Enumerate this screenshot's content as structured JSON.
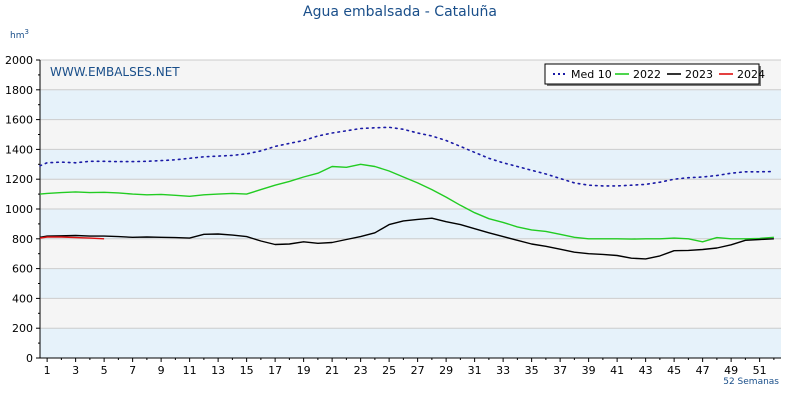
{
  "chart_data": {
    "type": "line",
    "title": "Agua embalsada - Cataluña",
    "y_unit": "hm",
    "y_unit_sup": "3",
    "watermark": "WWW.EMBALSES.NET",
    "x_footer": "52 Semanas",
    "ylim": [
      0,
      2000
    ],
    "yticks": [
      0,
      200,
      400,
      600,
      800,
      1000,
      1200,
      1400,
      1600,
      1800,
      2000
    ],
    "xlim": [
      0.5,
      52.5
    ],
    "xticks": [
      1,
      3,
      5,
      7,
      9,
      11,
      13,
      15,
      17,
      19,
      21,
      23,
      25,
      27,
      29,
      31,
      33,
      35,
      37,
      39,
      41,
      43,
      45,
      47,
      49,
      51
    ],
    "grid": true,
    "legend_position": "top-right",
    "series": [
      {
        "name": "Med 10",
        "color": "#1a1aa6",
        "style": "dotted",
        "points": [
          [
            0.5,
            1290
          ],
          [
            1,
            1310
          ],
          [
            2,
            1315
          ],
          [
            3,
            1310
          ],
          [
            4,
            1320
          ],
          [
            5,
            1320
          ],
          [
            6,
            1318
          ],
          [
            7,
            1318
          ],
          [
            8,
            1320
          ],
          [
            9,
            1325
          ],
          [
            10,
            1330
          ],
          [
            11,
            1340
          ],
          [
            12,
            1350
          ],
          [
            13,
            1355
          ],
          [
            14,
            1360
          ],
          [
            15,
            1370
          ],
          [
            16,
            1390
          ],
          [
            17,
            1420
          ],
          [
            18,
            1440
          ],
          [
            19,
            1460
          ],
          [
            20,
            1490
          ],
          [
            21,
            1510
          ],
          [
            22,
            1525
          ],
          [
            23,
            1540
          ],
          [
            24,
            1545
          ],
          [
            25,
            1548
          ],
          [
            26,
            1535
          ],
          [
            27,
            1510
          ],
          [
            28,
            1490
          ],
          [
            29,
            1460
          ],
          [
            30,
            1420
          ],
          [
            31,
            1380
          ],
          [
            32,
            1340
          ],
          [
            33,
            1310
          ],
          [
            34,
            1285
          ],
          [
            35,
            1260
          ],
          [
            36,
            1235
          ],
          [
            37,
            1205
          ],
          [
            38,
            1175
          ],
          [
            39,
            1160
          ],
          [
            40,
            1155
          ],
          [
            41,
            1155
          ],
          [
            42,
            1160
          ],
          [
            43,
            1165
          ],
          [
            44,
            1180
          ],
          [
            45,
            1200
          ],
          [
            46,
            1210
          ],
          [
            47,
            1215
          ],
          [
            48,
            1225
          ],
          [
            49,
            1240
          ],
          [
            50,
            1250
          ],
          [
            51,
            1250
          ],
          [
            52,
            1252
          ]
        ]
      },
      {
        "name": "2022",
        "color": "#22cc22",
        "style": "solid",
        "points": [
          [
            0.5,
            1100
          ],
          [
            1,
            1105
          ],
          [
            2,
            1110
          ],
          [
            3,
            1115
          ],
          [
            4,
            1110
          ],
          [
            5,
            1112
          ],
          [
            6,
            1108
          ],
          [
            7,
            1100
          ],
          [
            8,
            1095
          ],
          [
            9,
            1098
          ],
          [
            10,
            1092
          ],
          [
            11,
            1085
          ],
          [
            12,
            1095
          ],
          [
            13,
            1100
          ],
          [
            14,
            1105
          ],
          [
            15,
            1100
          ],
          [
            16,
            1130
          ],
          [
            17,
            1160
          ],
          [
            18,
            1185
          ],
          [
            19,
            1215
          ],
          [
            20,
            1240
          ],
          [
            21,
            1285
          ],
          [
            22,
            1280
          ],
          [
            23,
            1300
          ],
          [
            24,
            1285
          ],
          [
            25,
            1255
          ],
          [
            26,
            1215
          ],
          [
            27,
            1175
          ],
          [
            28,
            1130
          ],
          [
            29,
            1080
          ],
          [
            30,
            1025
          ],
          [
            31,
            975
          ],
          [
            32,
            935
          ],
          [
            33,
            910
          ],
          [
            34,
            880
          ],
          [
            35,
            860
          ],
          [
            36,
            850
          ],
          [
            37,
            830
          ],
          [
            38,
            810
          ],
          [
            39,
            800
          ],
          [
            40,
            800
          ],
          [
            41,
            800
          ],
          [
            42,
            798
          ],
          [
            43,
            800
          ],
          [
            44,
            800
          ],
          [
            45,
            805
          ],
          [
            46,
            800
          ],
          [
            47,
            780
          ],
          [
            48,
            808
          ],
          [
            49,
            800
          ],
          [
            50,
            800
          ],
          [
            51,
            803
          ],
          [
            52,
            810
          ]
        ]
      },
      {
        "name": "2023",
        "color": "#000000",
        "style": "solid",
        "points": [
          [
            0.5,
            810
          ],
          [
            1,
            818
          ],
          [
            2,
            820
          ],
          [
            3,
            822
          ],
          [
            4,
            818
          ],
          [
            5,
            818
          ],
          [
            6,
            815
          ],
          [
            7,
            810
          ],
          [
            8,
            812
          ],
          [
            9,
            810
          ],
          [
            10,
            808
          ],
          [
            11,
            805
          ],
          [
            12,
            830
          ],
          [
            13,
            832
          ],
          [
            14,
            825
          ],
          [
            15,
            815
          ],
          [
            16,
            785
          ],
          [
            17,
            762
          ],
          [
            18,
            765
          ],
          [
            19,
            780
          ],
          [
            20,
            770
          ],
          [
            21,
            775
          ],
          [
            22,
            795
          ],
          [
            23,
            815
          ],
          [
            24,
            840
          ],
          [
            25,
            895
          ],
          [
            26,
            920
          ],
          [
            27,
            930
          ],
          [
            28,
            938
          ],
          [
            29,
            915
          ],
          [
            30,
            895
          ],
          [
            31,
            868
          ],
          [
            32,
            840
          ],
          [
            33,
            815
          ],
          [
            34,
            790
          ],
          [
            35,
            765
          ],
          [
            36,
            750
          ],
          [
            37,
            730
          ],
          [
            38,
            710
          ],
          [
            39,
            700
          ],
          [
            40,
            695
          ],
          [
            41,
            688
          ],
          [
            42,
            670
          ],
          [
            43,
            665
          ],
          [
            44,
            685
          ],
          [
            45,
            720
          ],
          [
            46,
            722
          ],
          [
            47,
            728
          ],
          [
            48,
            738
          ],
          [
            49,
            760
          ],
          [
            50,
            790
          ],
          [
            51,
            795
          ],
          [
            52,
            800
          ]
        ]
      },
      {
        "name": "2024",
        "color": "#dd1111",
        "style": "solid",
        "points": [
          [
            0.5,
            805
          ],
          [
            1,
            812
          ],
          [
            2,
            812
          ],
          [
            3,
            808
          ],
          [
            4,
            805
          ],
          [
            5,
            800
          ]
        ]
      }
    ]
  }
}
